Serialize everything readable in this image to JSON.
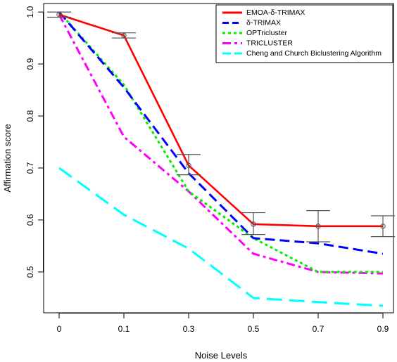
{
  "chart_data": {
    "type": "line",
    "xlabel": "Noise Levels",
    "ylabel": "Affirmation score",
    "x_categories": [
      "0",
      "0.1",
      "0.3",
      "0.5",
      "0.7",
      "0.9"
    ],
    "ylim": [
      0.42,
      1.02
    ],
    "y_ticks": [
      0.5,
      0.6,
      0.7,
      0.8,
      0.9,
      1.0
    ],
    "y_tick_labels": [
      "0.5",
      "0.6",
      "0.7",
      "0.8",
      "0.9",
      "1.0"
    ],
    "grid": false,
    "legend_position": "top-right",
    "series": [
      {
        "name": "EMOA-δ-TRIMAX",
        "color": "#ff0000",
        "dash": "solid",
        "markers": "open-circle",
        "values": [
          0.995,
          0.955,
          0.705,
          0.592,
          0.588,
          0.588
        ],
        "error_bars": [
          [
            0.99,
            1.0
          ],
          [
            0.95,
            0.96
          ],
          [
            0.687,
            0.726
          ],
          [
            0.572,
            0.614
          ],
          [
            0.558,
            0.618
          ],
          [
            0.568,
            0.608
          ]
        ]
      },
      {
        "name": "δ-TRIMAX",
        "color": "#0000ff",
        "dash": "dashed",
        "values": [
          1.0,
          0.855,
          0.69,
          0.565,
          0.555,
          0.535
        ]
      },
      {
        "name": "OPTricluster",
        "color": "#00ee00",
        "dash": "dotted",
        "values": [
          1.0,
          0.86,
          0.655,
          0.565,
          0.5,
          0.5
        ]
      },
      {
        "name": "TRICLUSTER",
        "color": "#ff00ff",
        "dash": "dashdot",
        "values": [
          0.995,
          0.76,
          0.655,
          0.535,
          0.5,
          0.497
        ]
      },
      {
        "name": "Cheng and Church Biclustering Algorithm",
        "color": "#00ffff",
        "dash": "longdash",
        "values": [
          0.7,
          0.61,
          0.545,
          0.45,
          0.442,
          0.435
        ]
      }
    ]
  }
}
